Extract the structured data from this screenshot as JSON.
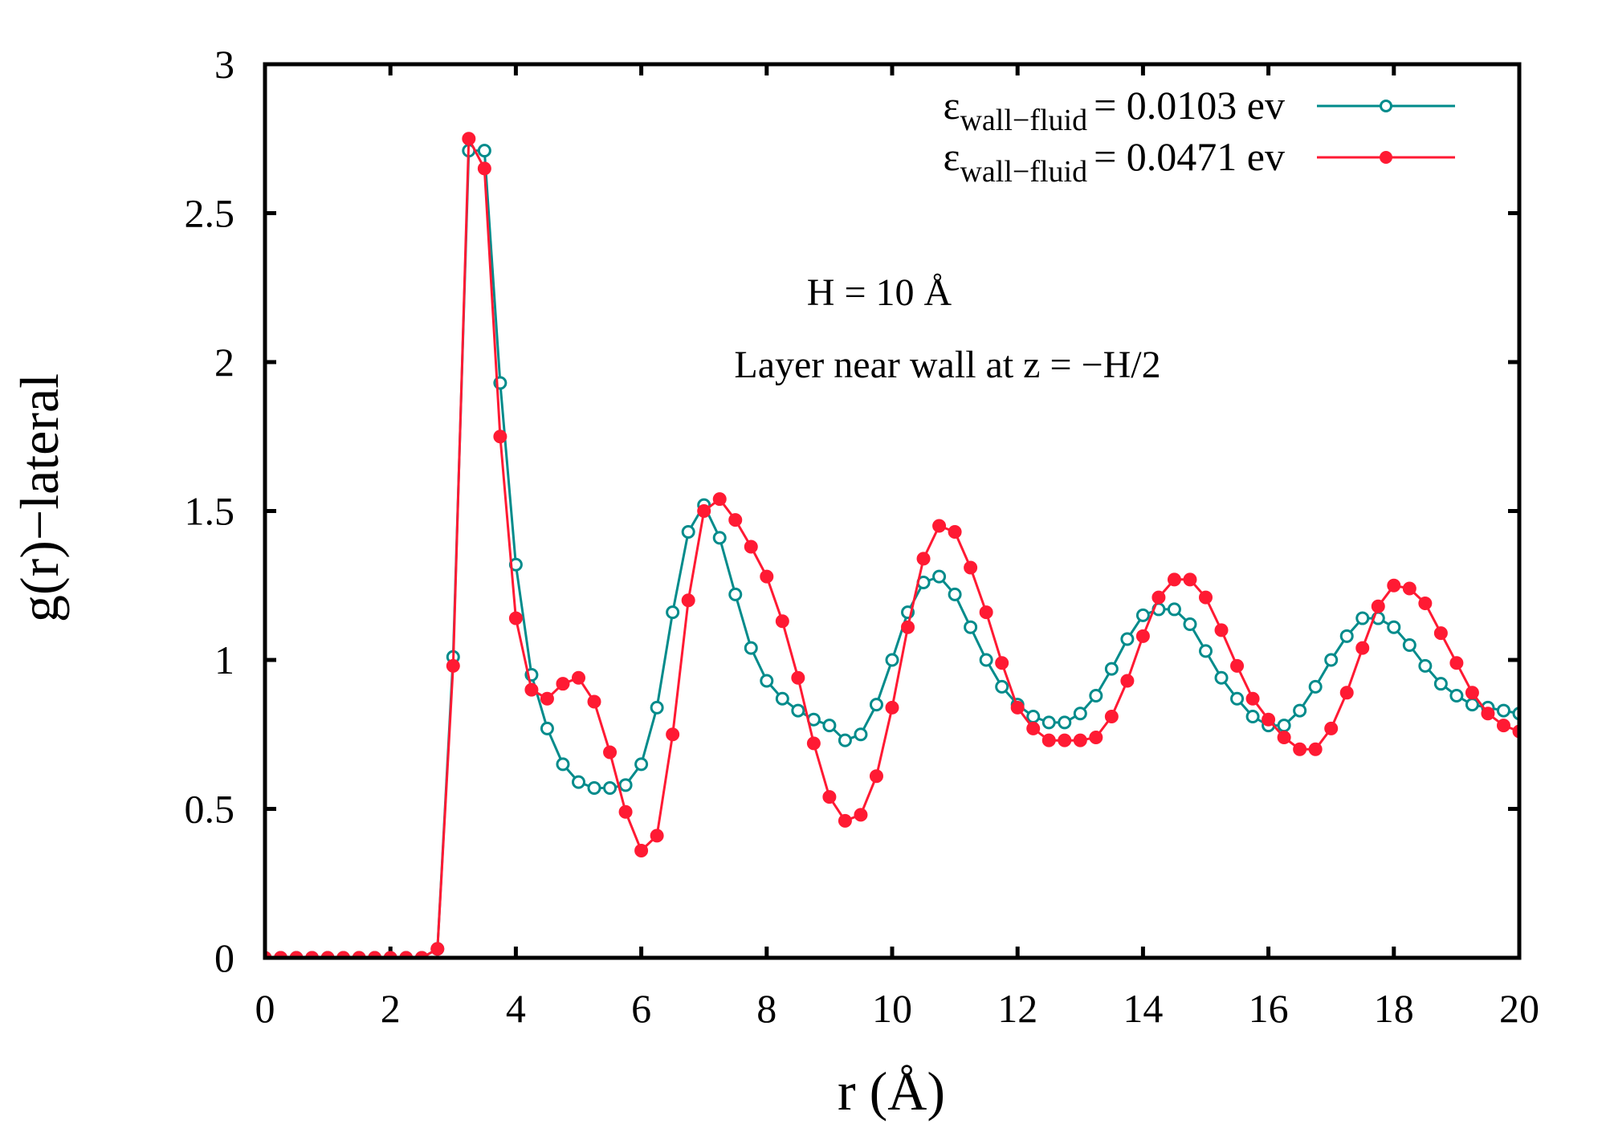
{
  "chart_data": {
    "type": "line",
    "title": "",
    "xlabel": "r (Å)",
    "ylabel": "g(r)−lateral",
    "xlim": [
      0,
      20
    ],
    "ylim": [
      0,
      3
    ],
    "xticks": [
      "0",
      "2",
      "4",
      "6",
      "8",
      "10",
      "12",
      "14",
      "16",
      "18",
      "20"
    ],
    "yticks": [
      "0",
      "0.5",
      "1",
      "1.5",
      "2",
      "2.5",
      "3"
    ],
    "grid": false,
    "legend_position": "top-right",
    "annotations": [
      "H = 10 Å",
      "Layer near wall at z = −H/2"
    ],
    "x": [
      0.0,
      0.25,
      0.5,
      0.75,
      1.0,
      1.25,
      1.5,
      1.75,
      2.0,
      2.25,
      2.5,
      2.75,
      3.0,
      3.25,
      3.5,
      3.75,
      4.0,
      4.25,
      4.5,
      4.75,
      5.0,
      5.25,
      5.5,
      5.75,
      6.0,
      6.25,
      6.5,
      6.75,
      7.0,
      7.25,
      7.5,
      7.75,
      8.0,
      8.25,
      8.5,
      8.75,
      9.0,
      9.25,
      9.5,
      9.75,
      10.0,
      10.25,
      10.5,
      10.75,
      11.0,
      11.25,
      11.5,
      11.75,
      12.0,
      12.25,
      12.5,
      12.75,
      13.0,
      13.25,
      13.5,
      13.75,
      14.0,
      14.25,
      14.5,
      14.75,
      15.0,
      15.25,
      15.5,
      15.75,
      16.0,
      16.25,
      16.5,
      16.75,
      17.0,
      17.25,
      17.5,
      17.75,
      18.0,
      18.25,
      18.5,
      18.75,
      19.0,
      19.25,
      19.5,
      19.75,
      20.0
    ],
    "series": [
      {
        "name": "0.0103",
        "label_symbol": "ε",
        "label_sub": "wall−fluid",
        "label_value": "= 0.0103 ev",
        "color": "#008b8b",
        "marker": "open-circle",
        "values": [
          0,
          0,
          0,
          0,
          0,
          0,
          0,
          0,
          0,
          0,
          0,
          0.03,
          1.01,
          2.71,
          2.71,
          1.93,
          1.32,
          0.95,
          0.77,
          0.65,
          0.59,
          0.57,
          0.57,
          0.58,
          0.65,
          0.84,
          1.16,
          1.43,
          1.52,
          1.41,
          1.22,
          1.04,
          0.93,
          0.87,
          0.83,
          0.8,
          0.78,
          0.73,
          0.75,
          0.85,
          1.0,
          1.16,
          1.26,
          1.28,
          1.22,
          1.11,
          1.0,
          0.91,
          0.85,
          0.81,
          0.79,
          0.79,
          0.82,
          0.88,
          0.97,
          1.07,
          1.15,
          1.17,
          1.17,
          1.12,
          1.03,
          0.94,
          0.87,
          0.81,
          0.78,
          0.78,
          0.83,
          0.91,
          1.0,
          1.08,
          1.14,
          1.14,
          1.11,
          1.05,
          0.98,
          0.92,
          0.88,
          0.85,
          0.84,
          0.83,
          0.82
        ]
      },
      {
        "name": "0.0471",
        "label_symbol": "ε",
        "label_sub": "wall−fluid",
        "label_value": "= 0.0471 ev",
        "color": "#ff1a33",
        "marker": "filled-circle",
        "values": [
          0,
          0,
          0,
          0,
          0,
          0,
          0,
          0,
          0,
          0,
          0,
          0.03,
          0.98,
          2.75,
          2.65,
          1.75,
          1.14,
          0.9,
          0.87,
          0.92,
          0.94,
          0.86,
          0.69,
          0.49,
          0.36,
          0.41,
          0.75,
          1.2,
          1.5,
          1.54,
          1.47,
          1.38,
          1.28,
          1.13,
          0.94,
          0.72,
          0.54,
          0.46,
          0.48,
          0.61,
          0.84,
          1.11,
          1.34,
          1.45,
          1.43,
          1.31,
          1.16,
          0.99,
          0.84,
          0.77,
          0.73,
          0.73,
          0.73,
          0.74,
          0.81,
          0.93,
          1.08,
          1.21,
          1.27,
          1.27,
          1.21,
          1.1,
          0.98,
          0.87,
          0.8,
          0.74,
          0.7,
          0.7,
          0.77,
          0.89,
          1.04,
          1.18,
          1.25,
          1.24,
          1.19,
          1.09,
          0.99,
          0.89,
          0.82,
          0.78,
          0.76
        ]
      }
    ]
  }
}
